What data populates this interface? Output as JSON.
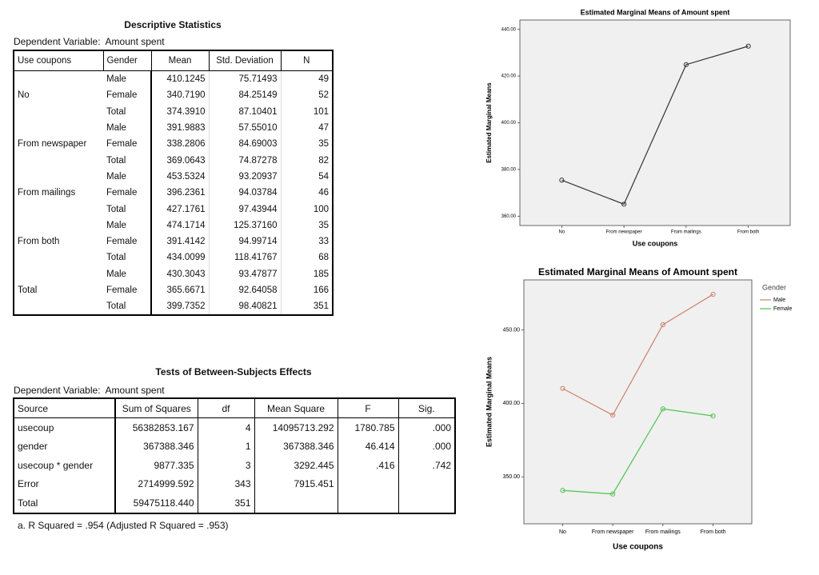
{
  "descriptive": {
    "title": "Descriptive Statistics",
    "dependent_label": "Dependent Variable:",
    "dependent_value": "Amount spent",
    "headers": [
      "Use coupons",
      "Gender",
      "Mean",
      "Std. Deviation",
      "N"
    ],
    "groups": [
      {
        "name": "No",
        "rows": [
          [
            "Male",
            "410.1245",
            "75.71493",
            "49"
          ],
          [
            "Female",
            "340.7190",
            "84.25149",
            "52"
          ],
          [
            "Total",
            "374.3910",
            "87.10401",
            "101"
          ]
        ]
      },
      {
        "name": "From newspaper",
        "rows": [
          [
            "Male",
            "391.9883",
            "57.55010",
            "47"
          ],
          [
            "Female",
            "338.2806",
            "84.69003",
            "35"
          ],
          [
            "Total",
            "369.0643",
            "74.87278",
            "82"
          ]
        ]
      },
      {
        "name": "From mailings",
        "rows": [
          [
            "Male",
            "453.5324",
            "93.20937",
            "54"
          ],
          [
            "Female",
            "396.2361",
            "94.03784",
            "46"
          ],
          [
            "Total",
            "427.1761",
            "97.43944",
            "100"
          ]
        ]
      },
      {
        "name": "From both",
        "rows": [
          [
            "Male",
            "474.1714",
            "125.37160",
            "35"
          ],
          [
            "Female",
            "391.4142",
            "94.99714",
            "33"
          ],
          [
            "Total",
            "434.0099",
            "118.41767",
            "68"
          ]
        ]
      },
      {
        "name": "Total",
        "rows": [
          [
            "Male",
            "430.3043",
            "93.47877",
            "185"
          ],
          [
            "Female",
            "365.6671",
            "92.64058",
            "166"
          ],
          [
            "Total",
            "399.7352",
            "98.40821",
            "351"
          ]
        ]
      }
    ]
  },
  "tests": {
    "title": "Tests of Between-Subjects Effects",
    "dependent_label": "Dependent Variable:",
    "dependent_value": "Amount spent",
    "headers": [
      "Source",
      "Sum of Squares",
      "df",
      "Mean Square",
      "F",
      "Sig."
    ],
    "rows": [
      [
        "usecoup",
        "56382853.167",
        "4",
        "14095713.292",
        "1780.785",
        ".000"
      ],
      [
        "gender",
        "367388.346",
        "1",
        "367388.346",
        "46.414",
        ".000"
      ],
      [
        "usecoup * gender",
        "9877.335",
        "3",
        "3292.445",
        ".416",
        ".742"
      ],
      [
        "Error",
        "2714999.592",
        "343",
        "7915.451"
      ],
      [
        "Total",
        "59475118.440",
        "351"
      ]
    ],
    "footnote": "a. R Squared = .954 (Adjusted R Squared = .953)"
  },
  "chart_data": [
    {
      "type": "line",
      "title": "Estimated Marginal Means of Amount spent",
      "x_label": "Use coupons",
      "y_label": "Estimated Marginal Means",
      "categories": [
        "No",
        "From newspaper",
        "From mailings",
        "From both"
      ],
      "values": [
        375.42,
        365.13,
        424.88,
        432.79
      ],
      "color": "#333333",
      "ylim": [
        356,
        444
      ],
      "yticks": [
        {
          "value": 360,
          "label": "360.00"
        },
        {
          "value": 380,
          "label": "380.00"
        },
        {
          "value": 400,
          "label": "400.00"
        },
        {
          "value": 420,
          "label": "420.00"
        },
        {
          "value": 440,
          "label": "440.00"
        }
      ],
      "background": "#f0f0f0"
    },
    {
      "type": "line",
      "title": "Estimated Marginal Means of Amount spent",
      "x_label": "Use coupons",
      "y_label": "Estimated Marginal Means",
      "categories": [
        "No",
        "From newspaper",
        "From mailings",
        "From both"
      ],
      "legend_title": "Gender",
      "legend": "right",
      "series": [
        {
          "name": "Male",
          "color": "#d0806a",
          "values": [
            410.1245,
            391.9883,
            453.5324,
            474.1714
          ]
        },
        {
          "name": "Female",
          "color": "#4cc44c",
          "values": [
            340.719,
            338.2806,
            396.2361,
            391.4142
          ]
        }
      ],
      "ylim": [
        318,
        484
      ],
      "yticks": [
        {
          "value": 350,
          "label": "350.00"
        },
        {
          "value": 400,
          "label": "400.00"
        },
        {
          "value": 450,
          "label": "450.00"
        }
      ],
      "background": "#f0f0f0"
    }
  ]
}
